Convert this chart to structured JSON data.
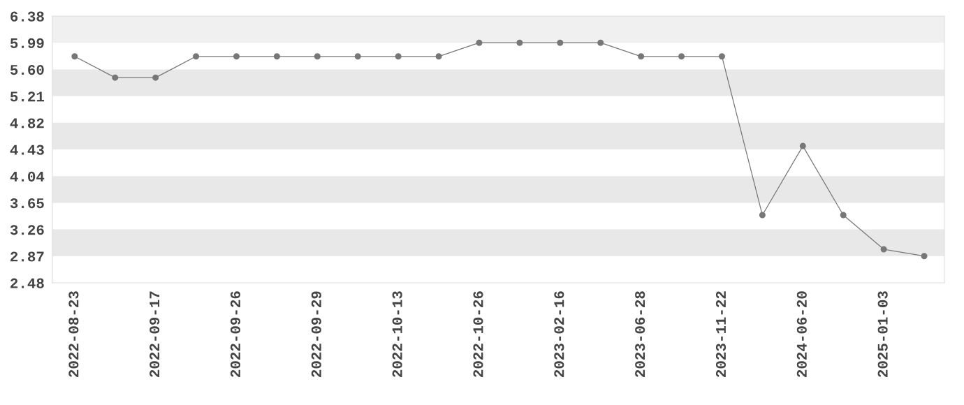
{
  "chart_data": {
    "type": "line",
    "categories": [
      "2022-08-23",
      null,
      "2022-09-17",
      null,
      "2022-09-26",
      null,
      "2022-09-29",
      null,
      "2022-10-13",
      null,
      "2022-10-26",
      null,
      "2023-02-16",
      null,
      "2023-06-28",
      null,
      "2023-11-22",
      null,
      "2024-06-20",
      null,
      "2025-01-03",
      null
    ],
    "series": [
      {
        "color": "#777777",
        "values": [
          5.79,
          5.48,
          5.48,
          5.79,
          5.79,
          5.79,
          5.79,
          5.79,
          5.79,
          5.79,
          5.99,
          5.99,
          5.99,
          5.99,
          5.79,
          5.79,
          5.79,
          3.47,
          4.48,
          3.47,
          2.97,
          2.87
        ]
      }
    ],
    "ylim": [
      2.48,
      6.38
    ],
    "yticks": [
      2.48,
      2.87,
      3.26,
      3.65,
      4.04,
      4.43,
      4.82,
      5.21,
      {
        "value": 5.6,
        "label": "5.60"
      },
      5.99,
      6.38
    ],
    "bands": [
      {
        "axis": "y",
        "from": 2.87,
        "to": 3.26,
        "color": "#e8e8e8"
      },
      {
        "axis": "y",
        "from": 3.65,
        "to": 4.04,
        "color": "#e8e8e8"
      },
      {
        "axis": "y",
        "from": 4.43,
        "to": 4.82,
        "color": "#e8e8e8"
      },
      {
        "axis": "y",
        "from": 5.21,
        "to": 5.6,
        "color": "#e8e8e8"
      },
      {
        "axis": "y",
        "from": 5.99,
        "to": 6.38,
        "color": "#f0f0f0"
      }
    ],
    "grid": false,
    "legend": false,
    "marker": "circle",
    "line_style": "solid"
  }
}
